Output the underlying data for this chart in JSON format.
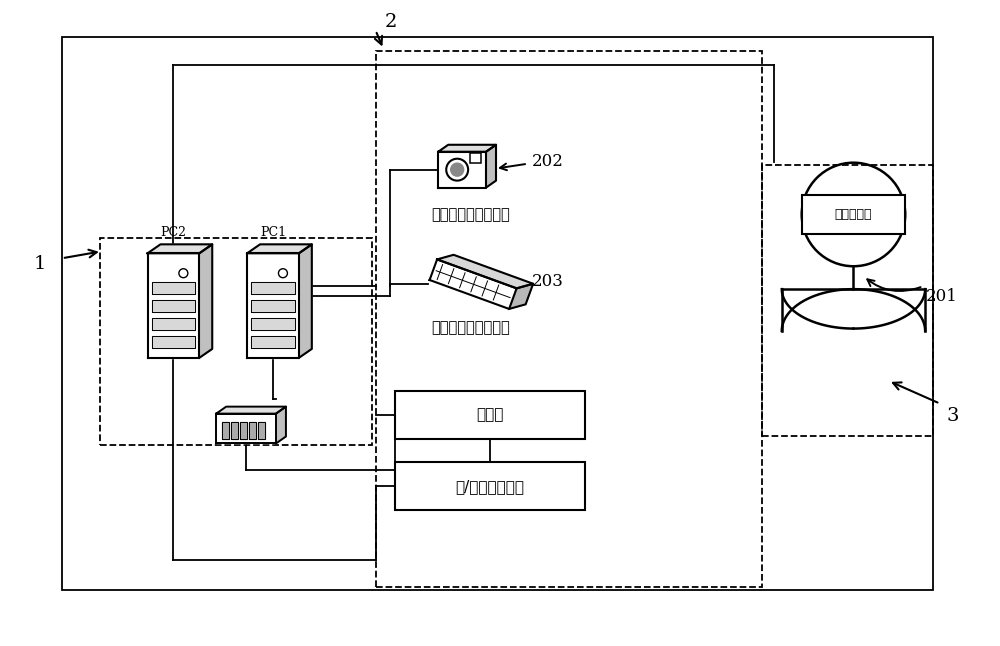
{
  "bg_color": "#ffffff",
  "fig_width": 10.0,
  "fig_height": 6.46,
  "labels": {
    "label_2": "2",
    "label_1": "1",
    "label_201": "201",
    "label_202": "202",
    "label_203": "203",
    "label_3": "3",
    "pc2": "PC2",
    "pc1": "PC1",
    "head_tracker": "头部运动跟踪传感器",
    "hand_tracker": "手部运动跟踪传感器",
    "controller": "控制器",
    "haptic": "力/触觉反馈机构",
    "hmd": "头盔显示器"
  }
}
